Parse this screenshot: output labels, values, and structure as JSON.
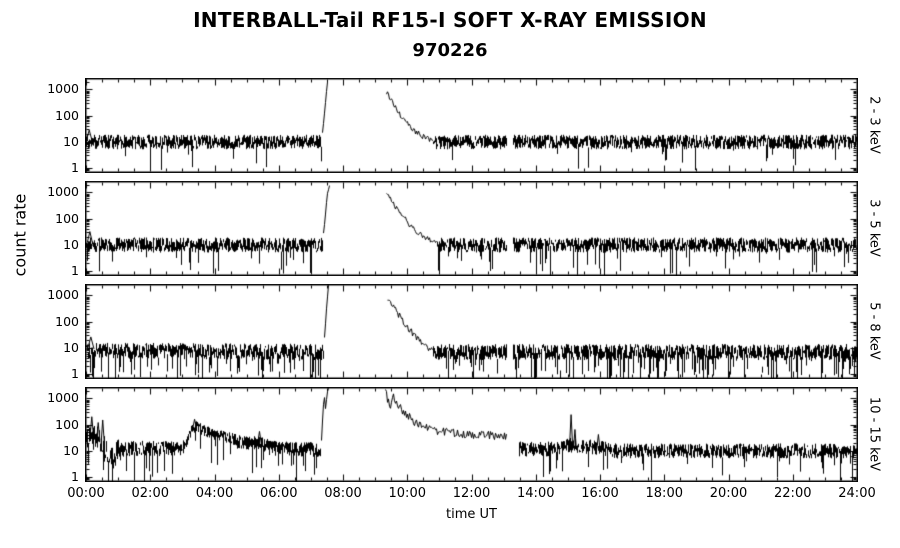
{
  "chart_data": {
    "type": "line",
    "title": "INTERBALL-Tail RF15-I SOFT X-RAY EMISSION",
    "subtitle": "970226",
    "xlabel": "time UT",
    "ylabel": "count rate",
    "y_scale": "log",
    "x_range_hours": [
      0,
      24
    ],
    "y_range": [
      0.7,
      2500
    ],
    "y_ticks": [
      1,
      10,
      100,
      1000
    ],
    "x_ticks": [
      "00:00",
      "02:00",
      "04:00",
      "06:00",
      "08:00",
      "10:00",
      "12:00",
      "14:00",
      "16:00",
      "18:00",
      "20:00",
      "22:00",
      "24:00"
    ],
    "panels": [
      {
        "label": "2 - 3 keV",
        "seed": 11,
        "downp": 0.02,
        "segments": [
          {
            "kind": "noise",
            "from": 0,
            "to": 7.32,
            "level": [
              [
                0,
                10
              ],
              [
                7.32,
                10
              ]
            ],
            "amp": 0.27
          },
          {
            "kind": "curve",
            "amp": 0.04,
            "points": [
              [
                7.32,
                12
              ],
              [
                7.4,
                90
              ],
              [
                7.47,
                800
              ],
              [
                7.53,
                3500
              ]
            ]
          },
          {
            "kind": "curve",
            "amp": 0.1,
            "points": [
              [
                9.33,
                800
              ],
              [
                9.45,
                430
              ],
              [
                9.6,
                210
              ],
              [
                9.8,
                95
              ],
              [
                10.0,
                48
              ],
              [
                10.2,
                27
              ],
              [
                10.5,
                15
              ],
              [
                10.8,
                11
              ]
            ]
          },
          {
            "kind": "noise",
            "from": 10.8,
            "to": 13.08,
            "level": [
              [
                10.8,
                10
              ],
              [
                13.08,
                10
              ]
            ],
            "amp": 0.27
          },
          {
            "kind": "noise",
            "from": 13.28,
            "to": 24,
            "level": [
              [
                13.28,
                10
              ],
              [
                24,
                10
              ]
            ],
            "amp": 0.27
          }
        ],
        "spikes": [
          {
            "t": 0.1,
            "v": 28,
            "w": 0.08,
            "base": 12
          }
        ]
      },
      {
        "label": "3 - 5 keV",
        "seed": 22,
        "downp": 0.03,
        "segments": [
          {
            "kind": "noise",
            "from": 0,
            "to": 7.35,
            "level": [
              [
                0,
                10
              ],
              [
                7.35,
                10
              ]
            ],
            "amp": 0.28
          },
          {
            "kind": "curve",
            "amp": 0.04,
            "points": [
              [
                7.35,
                12
              ],
              [
                7.43,
                120
              ],
              [
                7.5,
                900
              ],
              [
                7.58,
                2000
              ]
            ]
          },
          {
            "kind": "curve",
            "amp": 0.1,
            "points": [
              [
                9.32,
                1100
              ],
              [
                9.48,
                520
              ],
              [
                9.65,
                250
              ],
              [
                9.85,
                120
              ],
              [
                10.05,
                60
              ],
              [
                10.3,
                30
              ],
              [
                10.6,
                17
              ],
              [
                10.9,
                11
              ]
            ]
          },
          {
            "kind": "noise",
            "from": 10.9,
            "to": 13.08,
            "level": [
              [
                10.9,
                10
              ],
              [
                13.08,
                10
              ]
            ],
            "amp": 0.28
          },
          {
            "kind": "noise",
            "from": 13.28,
            "to": 24,
            "level": [
              [
                13.28,
                10
              ],
              [
                24,
                10
              ]
            ],
            "amp": 0.28
          }
        ],
        "spikes": [
          {
            "t": 0.12,
            "v": 32,
            "w": 0.08,
            "base": 12
          }
        ]
      },
      {
        "label": "5 - 8 keV",
        "seed": 33,
        "downp": 0.09,
        "segments": [
          {
            "kind": "noise",
            "from": 0,
            "to": 7.38,
            "level": [
              [
                0,
                8
              ],
              [
                7.38,
                7
              ]
            ],
            "amp": 0.3
          },
          {
            "kind": "curve",
            "amp": 0.04,
            "points": [
              [
                7.38,
                8
              ],
              [
                7.46,
                200
              ],
              [
                7.54,
                3500
              ]
            ]
          },
          {
            "kind": "curve",
            "amp": 0.12,
            "points": [
              [
                9.35,
                950
              ],
              [
                9.5,
                470
              ],
              [
                9.67,
                220
              ],
              [
                9.87,
                100
              ],
              [
                10.07,
                48
              ],
              [
                10.3,
                22
              ],
              [
                10.55,
                11
              ],
              [
                10.8,
                7.5
              ]
            ]
          },
          {
            "kind": "noise",
            "from": 10.8,
            "to": 13.08,
            "level": [
              [
                10.8,
                7
              ],
              [
                13.08,
                7
              ]
            ],
            "amp": 0.3
          },
          {
            "kind": "noise",
            "from": 13.28,
            "to": 24,
            "level": [
              [
                13.28,
                7
              ],
              [
                24,
                7
              ]
            ],
            "amp": 0.3
          }
        ],
        "spikes": [
          {
            "t": 0.15,
            "v": 26,
            "w": 0.1,
            "base": 9
          }
        ]
      },
      {
        "label": "10 - 15 keV",
        "seed": 44,
        "downp": 0.05,
        "segments": [
          {
            "kind": "noise",
            "from": 0,
            "to": 1.0,
            "level": [
              [
                0,
                28
              ],
              [
                0.25,
                40
              ],
              [
                0.5,
                22
              ],
              [
                0.65,
                8
              ],
              [
                0.8,
                5
              ],
              [
                1.0,
                11
              ]
            ],
            "amp": 0.45
          },
          {
            "kind": "noise",
            "from": 1.0,
            "to": 3.05,
            "level": [
              [
                1.0,
                12
              ],
              [
                3.05,
                13
              ]
            ],
            "amp": 0.3
          },
          {
            "kind": "noise",
            "from": 3.05,
            "to": 4.7,
            "level": [
              [
                3.05,
                16
              ],
              [
                3.3,
                70
              ],
              [
                3.45,
                90
              ],
              [
                3.7,
                55
              ],
              [
                4.0,
                42
              ],
              [
                4.3,
                34
              ],
              [
                4.7,
                26
              ]
            ],
            "amp": 0.22
          },
          {
            "kind": "noise",
            "from": 4.7,
            "to": 5.65,
            "level": [
              [
                4.7,
                22
              ],
              [
                5.2,
                20
              ],
              [
                5.65,
                17
              ]
            ],
            "amp": 0.26
          },
          {
            "kind": "noise",
            "from": 5.65,
            "to": 7.3,
            "level": [
              [
                5.65,
                13
              ],
              [
                7.3,
                11
              ]
            ],
            "amp": 0.28
          },
          {
            "kind": "curve",
            "amp": 0.05,
            "points": [
              [
                7.3,
                12
              ],
              [
                7.36,
                300
              ],
              [
                7.4,
                1600
              ],
              [
                7.44,
                420
              ],
              [
                7.49,
                1300
              ],
              [
                7.54,
                3500
              ]
            ]
          },
          {
            "kind": "curve",
            "amp": 0.16,
            "points": [
              [
                9.3,
                1900
              ],
              [
                9.38,
                900
              ],
              [
                9.44,
                420
              ],
              [
                9.52,
                1300
              ],
              [
                9.62,
                820
              ],
              [
                9.78,
                430
              ],
              [
                9.98,
                230
              ],
              [
                10.2,
                130
              ],
              [
                10.5,
                80
              ],
              [
                10.9,
                58
              ],
              [
                11.4,
                48
              ],
              [
                12.0,
                42
              ],
              [
                12.6,
                39
              ],
              [
                13.08,
                36
              ]
            ]
          },
          {
            "kind": "noise",
            "from": 13.45,
            "to": 24,
            "level": [
              [
                13.45,
                12
              ],
              [
                14.6,
                12
              ],
              [
                15.0,
                17
              ],
              [
                15.4,
                15
              ],
              [
                16.1,
                13
              ],
              [
                16.5,
                10
              ],
              [
                24,
                10
              ]
            ],
            "amp": 0.28
          }
        ],
        "spikes": [
          {
            "t": 0.18,
            "v": 200,
            "w": 0.06,
            "base": 30
          },
          {
            "t": 0.38,
            "v": 120,
            "w": 0.05,
            "base": 25
          },
          {
            "t": 0.52,
            "v": 150,
            "w": 0.05,
            "base": 20
          },
          {
            "t": 3.38,
            "v": 160,
            "w": 0.05,
            "base": 80
          },
          {
            "t": 5.4,
            "v": 55,
            "w": 0.06,
            "base": 18
          },
          {
            "t": 15.1,
            "v": 240,
            "w": 0.05,
            "base": 14
          },
          {
            "t": 15.22,
            "v": 65,
            "w": 0.04,
            "base": 14
          },
          {
            "t": 15.95,
            "v": 42,
            "w": 0.05,
            "base": 12
          }
        ]
      }
    ]
  }
}
